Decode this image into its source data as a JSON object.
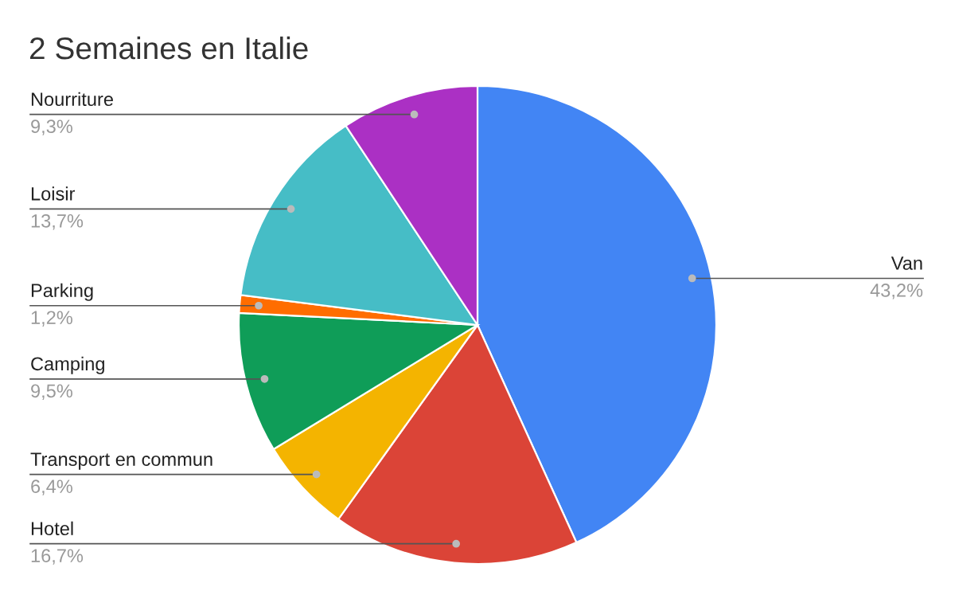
{
  "chart_data": {
    "type": "pie",
    "title": "2 Semaines en Italie",
    "categories": [
      "Van",
      "Hotel",
      "Transport en commun",
      "Camping",
      "Parking",
      "Loisir",
      "Nourriture"
    ],
    "values": [
      43.2,
      16.7,
      6.4,
      9.5,
      1.2,
      13.7,
      9.3
    ],
    "colors": [
      "#4285f4",
      "#db4437",
      "#f4b400",
      "#0f9d58",
      "#ff6d00",
      "#46bdc6",
      "#ab30c4"
    ],
    "value_labels": [
      "43,2%",
      "16,7%",
      "6,4%",
      "9,5%",
      "1,2%",
      "13,7%",
      "9,3%"
    ]
  }
}
